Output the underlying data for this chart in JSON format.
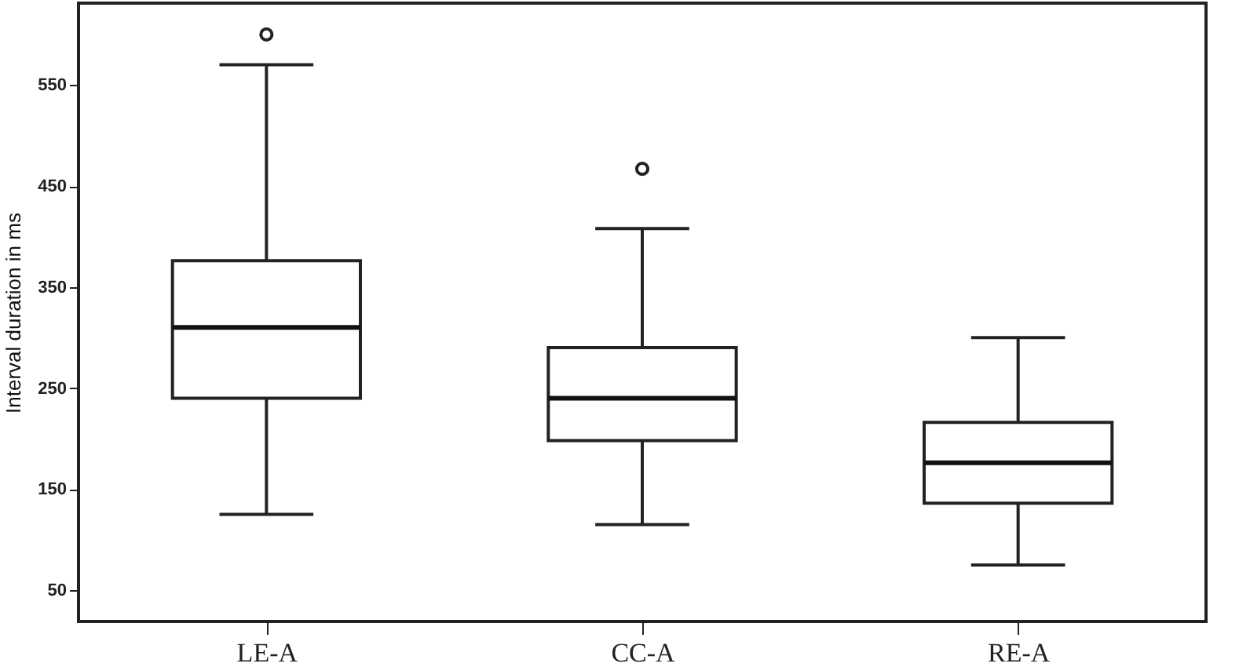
{
  "chart_data": {
    "type": "box",
    "ylabel": "Interval duration in ms",
    "categories": [
      "LE-A",
      "CC-A",
      "RE-A"
    ],
    "boxes": [
      {
        "low": 125,
        "q1": 240,
        "median": 310,
        "q3": 376,
        "high": 570,
        "outliers": [
          600
        ]
      },
      {
        "low": 115,
        "q1": 198,
        "median": 240,
        "q3": 290,
        "high": 408,
        "outliers": [
          467
        ]
      },
      {
        "low": 75,
        "q1": 136,
        "median": 176,
        "q3": 216,
        "high": 300
      }
    ],
    "ylim": [
      19,
      631
    ],
    "yticks": [
      50,
      150,
      250,
      350,
      450,
      550
    ],
    "grid": false
  }
}
